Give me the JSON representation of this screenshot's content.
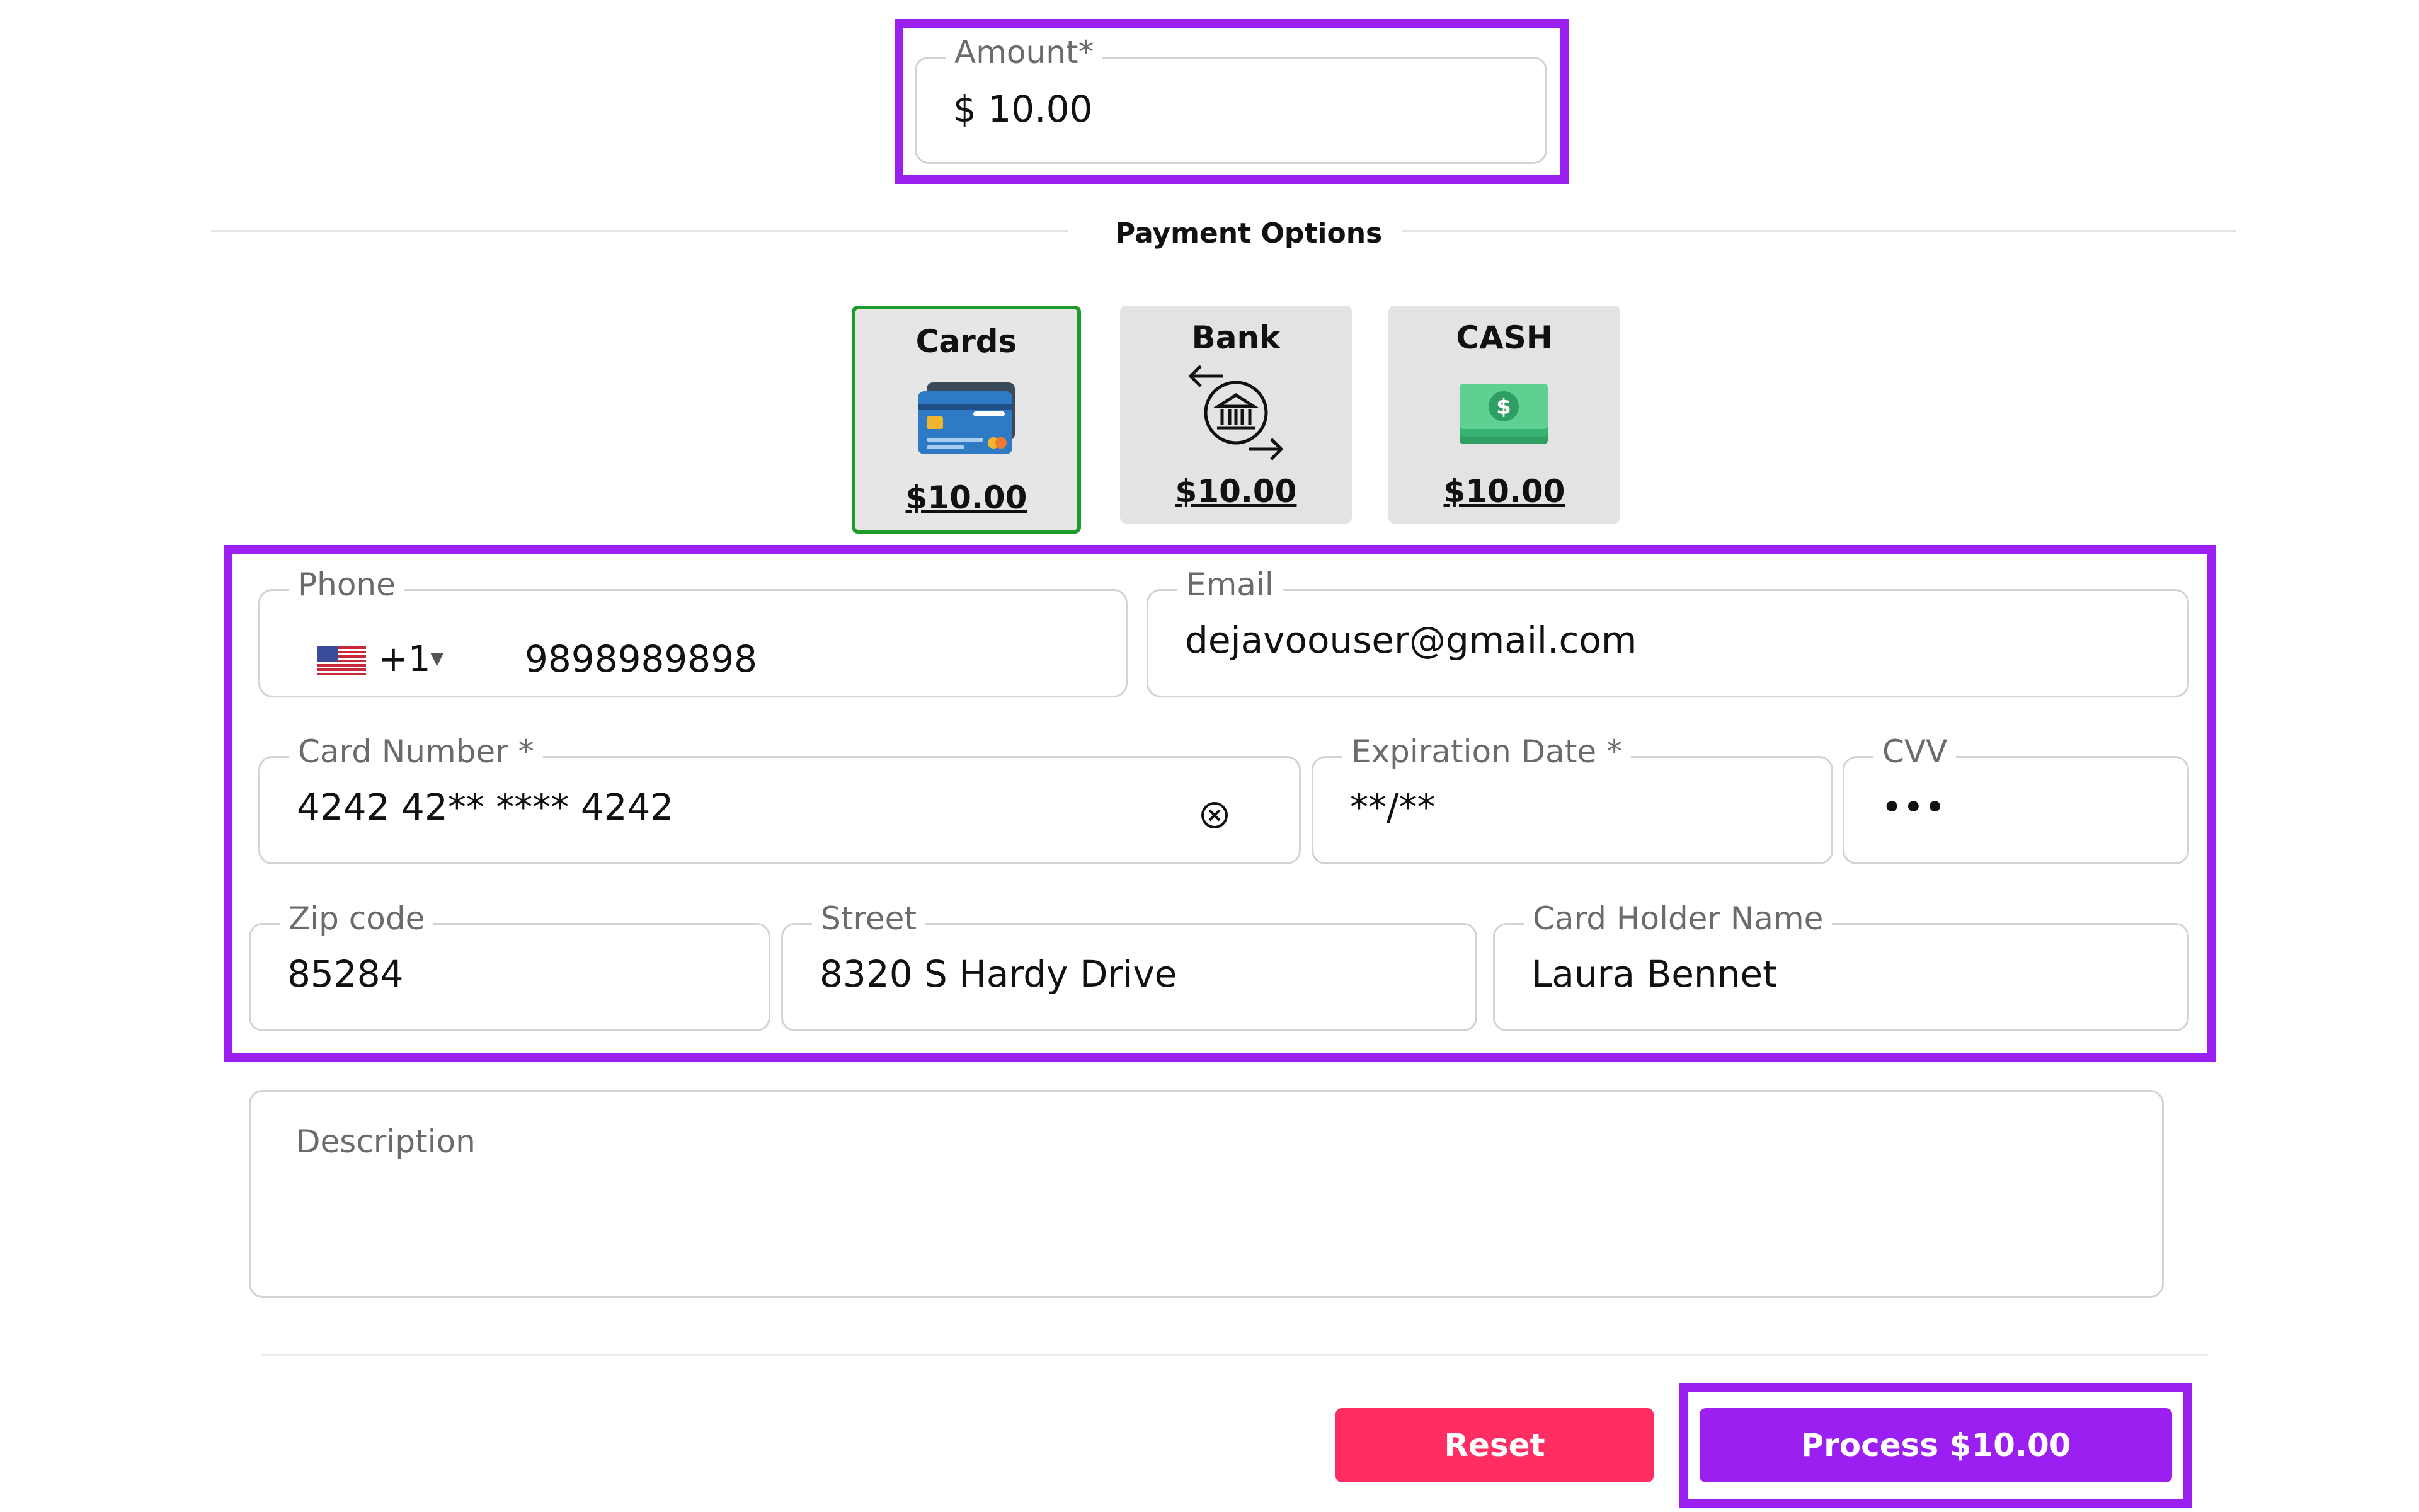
{
  "amount": {
    "label": "Amount*",
    "value": "$ 10.00"
  },
  "payment_options": {
    "title": "Payment Options",
    "options": [
      {
        "label": "Cards",
        "amount": "$10.00",
        "icon": "credit-card-icon",
        "selected": true
      },
      {
        "label": "Bank",
        "amount": "$10.00",
        "icon": "bank-transfer-icon",
        "selected": false
      },
      {
        "label": "CASH",
        "amount": "$10.00",
        "icon": "cash-icon",
        "selected": false
      }
    ]
  },
  "form": {
    "phone": {
      "label": "Phone",
      "country_code": "+1",
      "value": "9898989898"
    },
    "email": {
      "label": "Email",
      "value": "dejavoouser@gmail.com"
    },
    "card_number": {
      "label": "Card Number *",
      "value": "4242 42** **** 4242"
    },
    "expiration": {
      "label": "Expiration Date *",
      "value": "**/**"
    },
    "cvv": {
      "label": "CVV",
      "value": "•••"
    },
    "zip": {
      "label": "Zip code",
      "value": "85284"
    },
    "street": {
      "label": "Street",
      "value": "8320 S Hardy Drive"
    },
    "card_holder": {
      "label": "Card Holder Name",
      "value": "Laura Bennet"
    },
    "description": {
      "placeholder": "Description"
    }
  },
  "actions": {
    "reset_label": "Reset",
    "process_label": "Process $10.00"
  },
  "colors": {
    "highlight": "#9b1ff0",
    "reset": "#ff2d62",
    "process": "#9b1ff0",
    "selected_border": "#1e9b2a"
  }
}
